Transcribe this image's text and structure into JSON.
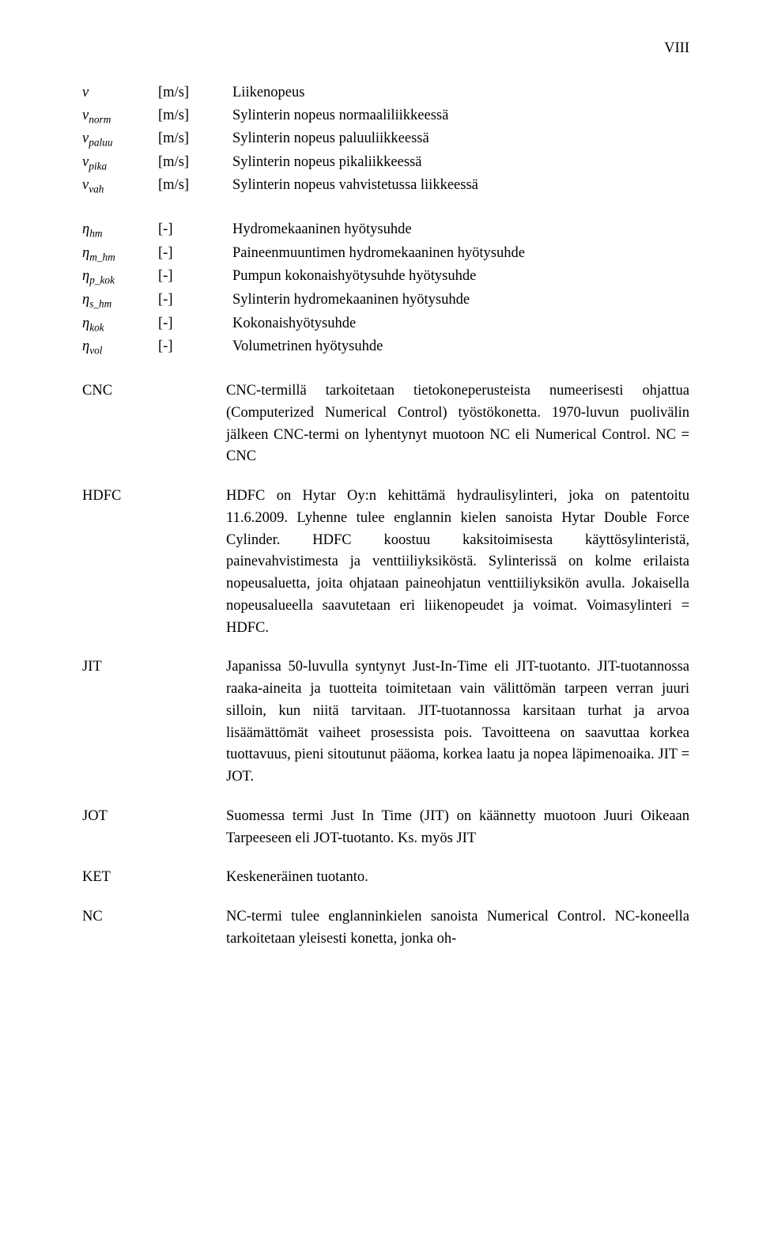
{
  "page_number": "VIII",
  "symbols_group1": [
    {
      "sym_main": "v",
      "sym_sub": "",
      "unit": "[m/s]",
      "desc": "Liikenopeus"
    },
    {
      "sym_main": "v",
      "sym_sub": "norm",
      "unit": "[m/s]",
      "desc": "Sylinterin nopeus normaaliliikkeessä"
    },
    {
      "sym_main": "v",
      "sym_sub": "paluu",
      "unit": "[m/s]",
      "desc": "Sylinterin nopeus paluuliikkeessä"
    },
    {
      "sym_main": "v",
      "sym_sub": "pika",
      "unit": "[m/s]",
      "desc": "Sylinterin nopeus pikaliikkeessä"
    },
    {
      "sym_main": "v",
      "sym_sub": "vah",
      "unit": "[m/s]",
      "desc": "Sylinterin nopeus vahvistetussa liikkeessä"
    }
  ],
  "symbols_group2": [
    {
      "sym_main": "η",
      "sym_sub": "hm",
      "unit": "[-]",
      "desc": "Hydromekaaninen hyötysuhde"
    },
    {
      "sym_main": "η",
      "sym_sub": "m_hm",
      "unit": "[-]",
      "desc": "Paineenmuuntimen hydromekaaninen hyötysuhde"
    },
    {
      "sym_main": "η",
      "sym_sub": "p_kok",
      "unit": "[-]",
      "desc": "Pumpun kokonaishyötysuhde hyötysuhde"
    },
    {
      "sym_main": "η",
      "sym_sub": "s_hm",
      "unit": "[-]",
      "desc": "Sylinterin hydromekaaninen hyötysuhde"
    },
    {
      "sym_main": "η",
      "sym_sub": "kok",
      "unit": "[-]",
      "desc": "Kokonaishyötysuhde"
    },
    {
      "sym_main": "η",
      "sym_sub": "vol",
      "unit": "[-]",
      "desc": "Volumetrinen hyötysuhde"
    }
  ],
  "terms": [
    {
      "abbr": "CNC",
      "def": "CNC-termillä tarkoitetaan tietokoneperusteista numeerisesti ohjattua (Computerized Numerical Control) työstökonetta. 1970-luvun puolivälin jälkeen CNC-termi on lyhentynyt muotoon NC eli Numerical Control. NC = CNC"
    },
    {
      "abbr": "HDFC",
      "def": "HDFC on Hytar Oy:n kehittämä hydraulisylinteri, joka on patentoitu 11.6.2009. Lyhenne tulee englannin kielen sanoista Hytar Double Force Cylinder. HDFC koostuu kaksitoimisesta käyttösylinteristä, painevahvistimesta ja venttiiliyksiköstä. Sylinterissä on kolme erilaista nopeusaluetta, joita ohjataan paineohjatun venttiiliyksikön avulla. Jokaisella nopeusalueella saavutetaan eri liikenopeudet ja voimat. Voimasylinteri = HDFC."
    },
    {
      "abbr": "JIT",
      "def": "Japanissa 50-luvulla syntynyt Just-In-Time eli JIT-tuotanto. JIT-tuotannossa raaka-aineita ja tuotteita toimitetaan vain välittömän tarpeen verran juuri silloin, kun niitä tarvitaan. JIT-tuotannossa karsitaan turhat ja arvoa lisäämättömät vaiheet prosessista pois. Tavoitteena on saavuttaa korkea tuottavuus, pieni sitoutunut pääoma, korkea laatu ja nopea läpimenoaika. JIT = JOT."
    },
    {
      "abbr": "JOT",
      "def": "Suomessa termi Just In Time (JIT) on käännetty muotoon Juuri Oikeaan Tarpeeseen eli JOT-tuotanto. Ks. myös JIT"
    },
    {
      "abbr": "KET",
      "def": "Keskeneräinen tuotanto."
    },
    {
      "abbr": "NC",
      "def": "NC-termi tulee englanninkielen sanoista Numerical Control. NC-koneella tarkoitetaan yleisesti konetta, jonka oh-"
    }
  ]
}
